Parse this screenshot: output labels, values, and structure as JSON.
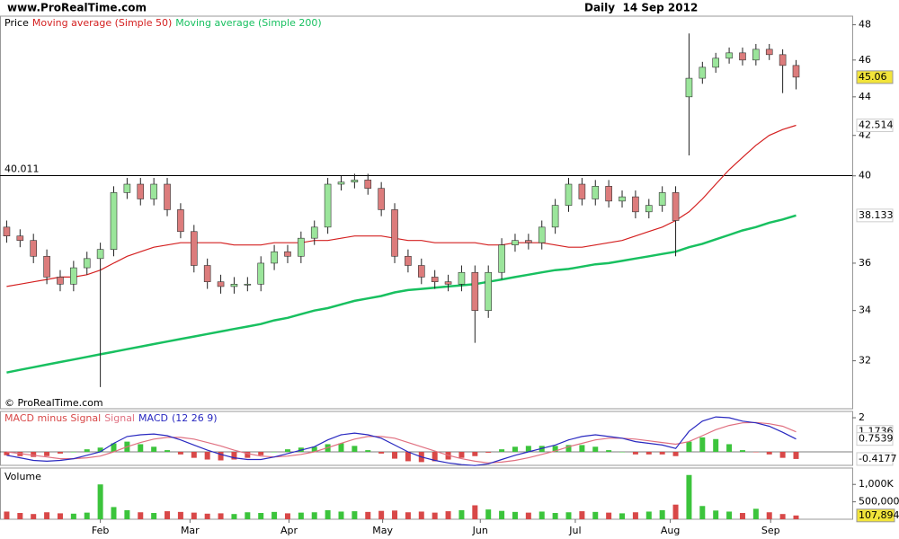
{
  "header": {
    "site": "www.ProRealTime.com",
    "period": "Daily  14 Sep 2012"
  },
  "chart_data": [
    {
      "type": "candlestick",
      "legend_title": "Price",
      "footnote": "© ProRealTime.com",
      "log_scale": true,
      "ylim": [
        30.2,
        48.5
      ],
      "yticks": [
        32,
        34,
        36,
        40,
        42,
        44,
        46,
        48
      ],
      "xlim": [
        -0.5,
        63.2
      ],
      "hline": 40.011,
      "up_color": "#9be59b",
      "down_color": "#dc7c7c",
      "open": [
        37.6,
        37.2,
        37.0,
        36.3,
        35.4,
        35.1,
        35.8,
        36.2,
        36.6,
        39.2,
        39.6,
        38.9,
        39.6,
        38.4,
        37.4,
        35.9,
        35.2,
        35.0,
        35.1,
        35.1,
        36.0,
        36.5,
        36.3,
        37.1,
        37.6,
        39.6,
        39.7,
        39.8,
        39.4,
        38.4,
        36.3,
        35.9,
        35.4,
        35.2,
        35.1,
        35.6,
        34.0,
        35.6,
        36.8,
        37.0,
        36.9,
        37.6,
        38.6,
        39.6,
        38.9,
        39.5,
        38.8,
        39.0,
        38.3,
        38.6,
        39.2,
        44.0,
        45.0,
        45.6,
        46.1,
        46.4,
        46.0,
        46.6,
        46.3,
        45.7
      ],
      "high": [
        37.9,
        37.5,
        37.3,
        36.6,
        35.7,
        36.1,
        36.5,
        36.9,
        39.5,
        39.9,
        39.9,
        39.9,
        39.9,
        38.7,
        37.7,
        36.2,
        35.5,
        35.4,
        35.4,
        36.3,
        36.8,
        36.8,
        37.4,
        37.9,
        39.9,
        40.0,
        40.1,
        40.1,
        39.7,
        38.7,
        36.6,
        36.2,
        35.7,
        35.5,
        35.9,
        35.9,
        35.9,
        37.1,
        37.3,
        37.3,
        37.9,
        38.9,
        39.9,
        39.9,
        39.8,
        39.8,
        39.3,
        39.3,
        38.9,
        39.5,
        39.5,
        47.5,
        45.9,
        46.4,
        46.7,
        46.7,
        46.9,
        46.9,
        46.6,
        46.0
      ],
      "low": [
        36.9,
        36.7,
        36.0,
        35.1,
        34.8,
        34.8,
        35.5,
        31.0,
        36.3,
        38.9,
        38.6,
        38.6,
        38.1,
        37.1,
        35.6,
        34.9,
        34.7,
        34.7,
        34.8,
        34.8,
        35.7,
        36.0,
        36.0,
        36.8,
        37.3,
        39.3,
        39.4,
        39.1,
        38.1,
        36.0,
        35.6,
        35.1,
        34.9,
        34.8,
        34.8,
        32.7,
        33.7,
        35.3,
        36.5,
        36.6,
        36.6,
        37.3,
        38.3,
        38.6,
        38.6,
        38.5,
        38.5,
        38.0,
        38.0,
        38.3,
        36.3,
        41.0,
        44.7,
        45.3,
        45.8,
        45.7,
        45.7,
        46.0,
        44.2,
        44.4
      ],
      "close": [
        37.2,
        37.0,
        36.3,
        35.4,
        35.1,
        35.8,
        36.2,
        36.6,
        39.2,
        39.6,
        38.9,
        39.6,
        38.4,
        37.4,
        35.9,
        35.2,
        35.0,
        35.1,
        35.1,
        36.0,
        36.5,
        36.3,
        37.1,
        37.6,
        39.6,
        39.7,
        39.8,
        39.4,
        38.4,
        36.3,
        35.9,
        35.4,
        35.2,
        35.1,
        35.6,
        34.0,
        35.6,
        36.8,
        37.0,
        36.9,
        37.6,
        38.6,
        39.6,
        38.9,
        39.5,
        38.8,
        39.0,
        38.3,
        38.6,
        39.2,
        37.9,
        45.0,
        45.6,
        46.1,
        46.4,
        46.0,
        46.6,
        46.3,
        45.7,
        45.06
      ],
      "series": [
        {
          "name": "Moving average (Simple 50)",
          "color": "#d42020",
          "values": [
            35.0,
            35.1,
            35.2,
            35.3,
            35.4,
            35.4,
            35.5,
            35.7,
            36.0,
            36.3,
            36.5,
            36.7,
            36.8,
            36.9,
            36.9,
            36.9,
            36.9,
            36.8,
            36.8,
            36.8,
            36.9,
            36.9,
            36.9,
            37.0,
            37.0,
            37.1,
            37.2,
            37.2,
            37.2,
            37.1,
            37.0,
            37.0,
            36.9,
            36.9,
            36.9,
            36.9,
            36.8,
            36.8,
            36.9,
            36.9,
            36.9,
            36.8,
            36.7,
            36.7,
            36.8,
            36.9,
            37.0,
            37.2,
            37.4,
            37.6,
            37.9,
            38.3,
            38.9,
            39.6,
            40.3,
            40.9,
            41.5,
            42.0,
            42.3,
            42.514
          ]
        },
        {
          "name": "Moving average (Simple 200)",
          "color": "#18c060",
          "values": [
            31.55,
            31.65,
            31.75,
            31.85,
            31.95,
            32.05,
            32.15,
            32.25,
            32.35,
            32.45,
            32.55,
            32.65,
            32.75,
            32.85,
            32.95,
            33.05,
            33.15,
            33.25,
            33.35,
            33.45,
            33.6,
            33.7,
            33.85,
            34.0,
            34.1,
            34.25,
            34.4,
            34.5,
            34.6,
            34.75,
            34.85,
            34.9,
            34.95,
            35.0,
            35.05,
            35.1,
            35.2,
            35.3,
            35.4,
            35.5,
            35.6,
            35.7,
            35.75,
            35.85,
            35.95,
            36.0,
            36.1,
            36.2,
            36.3,
            36.4,
            36.5,
            36.7,
            36.85,
            37.05,
            37.25,
            37.45,
            37.6,
            37.8,
            37.95,
            38.133
          ]
        }
      ]
    },
    {
      "type": "macd",
      "legend_suffix": "(12 26 9)",
      "ylim": [
        -0.79,
        2.37
      ],
      "yticks": [
        2
      ],
      "xlim": [
        -0.5,
        63.2
      ],
      "positive_color": "#3cc43c",
      "negative_color": "#d84848",
      "series": [
        {
          "name": "MACD minus Signal",
          "color": "#d84848",
          "values": [
            -0.2,
            -0.25,
            -0.3,
            -0.25,
            -0.1,
            0.0,
            0.15,
            0.25,
            0.5,
            0.6,
            0.45,
            0.3,
            0.1,
            -0.15,
            -0.35,
            -0.45,
            -0.5,
            -0.45,
            -0.35,
            -0.2,
            0.0,
            0.15,
            0.25,
            0.3,
            0.45,
            0.5,
            0.35,
            0.1,
            -0.1,
            -0.4,
            -0.55,
            -0.6,
            -0.55,
            -0.45,
            -0.35,
            -0.25,
            -0.05,
            0.15,
            0.3,
            0.35,
            0.35,
            0.35,
            0.4,
            0.4,
            0.3,
            0.1,
            0.0,
            -0.15,
            -0.15,
            -0.15,
            -0.25,
            0.6,
            0.85,
            0.75,
            0.45,
            0.1,
            -0.02,
            -0.15,
            -0.35,
            -0.4177
          ]
        },
        {
          "name": "Signal",
          "color": "#e07080",
          "values": [
            0.0,
            -0.1,
            -0.2,
            -0.3,
            -0.4,
            -0.4,
            -0.35,
            -0.25,
            0.0,
            0.3,
            0.55,
            0.75,
            0.85,
            0.85,
            0.75,
            0.55,
            0.35,
            0.1,
            -0.1,
            -0.25,
            -0.3,
            -0.25,
            -0.15,
            0.0,
            0.25,
            0.5,
            0.75,
            0.9,
            0.9,
            0.8,
            0.55,
            0.3,
            0.05,
            -0.2,
            -0.4,
            -0.55,
            -0.65,
            -0.6,
            -0.5,
            -0.35,
            -0.15,
            0.05,
            0.3,
            0.5,
            0.7,
            0.8,
            0.8,
            0.75,
            0.65,
            0.55,
            0.45,
            0.6,
            0.95,
            1.3,
            1.55,
            1.7,
            1.72,
            1.65,
            1.5,
            1.1736
          ]
        },
        {
          "name": "MACD",
          "color": "#2828c0",
          "values": [
            -0.2,
            -0.35,
            -0.5,
            -0.55,
            -0.5,
            -0.4,
            -0.2,
            0.0,
            0.5,
            0.9,
            1.0,
            1.05,
            0.95,
            0.7,
            0.4,
            0.1,
            -0.15,
            -0.35,
            -0.45,
            -0.45,
            -0.3,
            -0.1,
            0.1,
            0.3,
            0.7,
            1.0,
            1.1,
            1.0,
            0.8,
            0.4,
            0.0,
            -0.3,
            -0.5,
            -0.65,
            -0.75,
            -0.8,
            -0.7,
            -0.45,
            -0.2,
            0.0,
            0.2,
            0.4,
            0.7,
            0.9,
            1.0,
            0.9,
            0.8,
            0.6,
            0.5,
            0.4,
            0.2,
            1.2,
            1.8,
            2.05,
            2.0,
            1.8,
            1.7,
            1.5,
            1.15,
            0.7539
          ]
        }
      ]
    },
    {
      "type": "volume",
      "title": "Volume",
      "ylim": [
        0,
        1470000
      ],
      "xlim": [
        -0.5,
        63.2
      ],
      "yticks": [
        {
          "value": 1000000,
          "label": "1,000K"
        },
        {
          "value": 500000,
          "label": "500,000"
        }
      ],
      "values": [
        220000,
        180000,
        150000,
        200000,
        170000,
        160000,
        190000,
        1000000,
        350000,
        260000,
        200000,
        180000,
        230000,
        210000,
        190000,
        160000,
        170000,
        150000,
        200000,
        180000,
        210000,
        170000,
        190000,
        200000,
        260000,
        220000,
        230000,
        210000,
        240000,
        250000,
        200000,
        220000,
        190000,
        230000,
        260000,
        400000,
        280000,
        240000,
        210000,
        190000,
        220000,
        180000,
        200000,
        230000,
        210000,
        190000,
        170000,
        200000,
        220000,
        260000,
        420000,
        1270000,
        380000,
        250000,
        220000,
        180000,
        300000,
        200000,
        150000,
        107894
      ],
      "last_label": "107,894",
      "xticks": [
        {
          "value": 7.0,
          "label": "Feb"
        },
        {
          "value": 13.7,
          "label": "Mar"
        },
        {
          "value": 21.1,
          "label": "Apr"
        },
        {
          "value": 28.1,
          "label": "May"
        },
        {
          "value": 35.4,
          "label": "Jun"
        },
        {
          "value": 42.5,
          "label": "Jul"
        },
        {
          "value": 49.6,
          "label": "Aug"
        },
        {
          "value": 57.1,
          "label": "Sep"
        }
      ]
    }
  ]
}
